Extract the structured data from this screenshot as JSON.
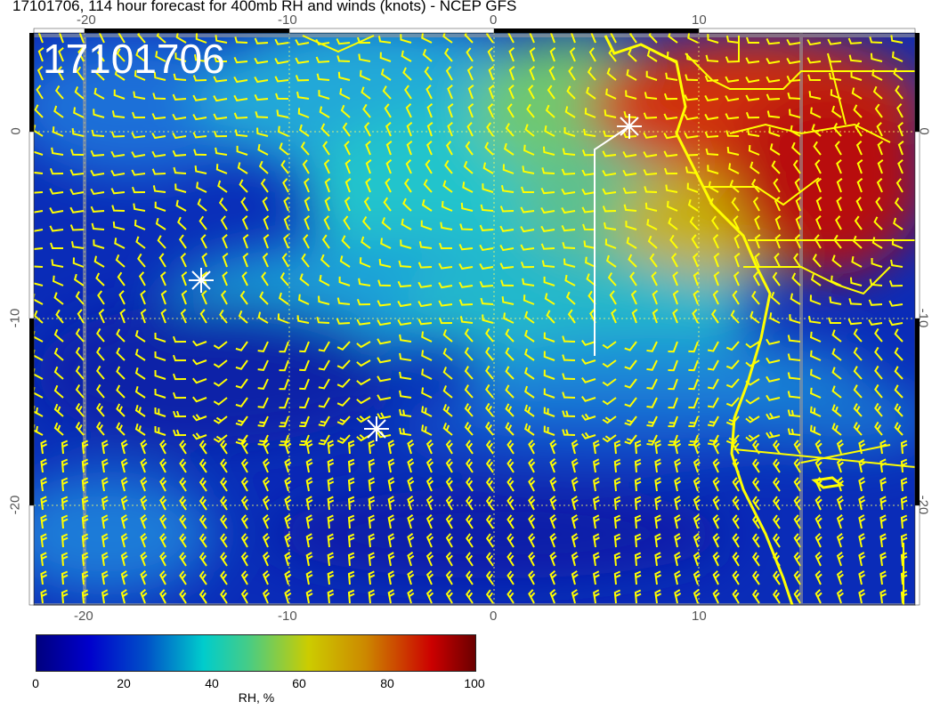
{
  "title": "17101706, 114 hour forecast for 400mb RH and winds (knots) - NCEP GFS",
  "map_label": "17101706",
  "map": {
    "lon_ticks": [
      "-20",
      "-10",
      "0",
      "10"
    ],
    "lat_ticks": [
      "0",
      "-10",
      "-20"
    ],
    "lon_range": [
      -22.5,
      20.5
    ],
    "lat_range": [
      -25.3,
      5.3
    ],
    "variable": "400mb relative humidity",
    "barb_color": "#ffff00",
    "coastline_color": "#ffff00",
    "markers": [
      {
        "type": "star",
        "lon": -14.4,
        "lat": -8.0
      },
      {
        "type": "star",
        "lon": -5.7,
        "lat": -15.9
      },
      {
        "type": "star",
        "lon": 6.6,
        "lat": 0.3
      }
    ]
  },
  "colorbar": {
    "ticks": [
      "0",
      "20",
      "40",
      "60",
      "80",
      "100"
    ],
    "label": "RH, %",
    "range": [
      0,
      100
    ],
    "colors": [
      "#00007f",
      "#0000cc",
      "#0050c8",
      "#00cccc",
      "#44cc88",
      "#cccc00",
      "#cc8800",
      "#cc0000",
      "#6b0000"
    ]
  }
}
